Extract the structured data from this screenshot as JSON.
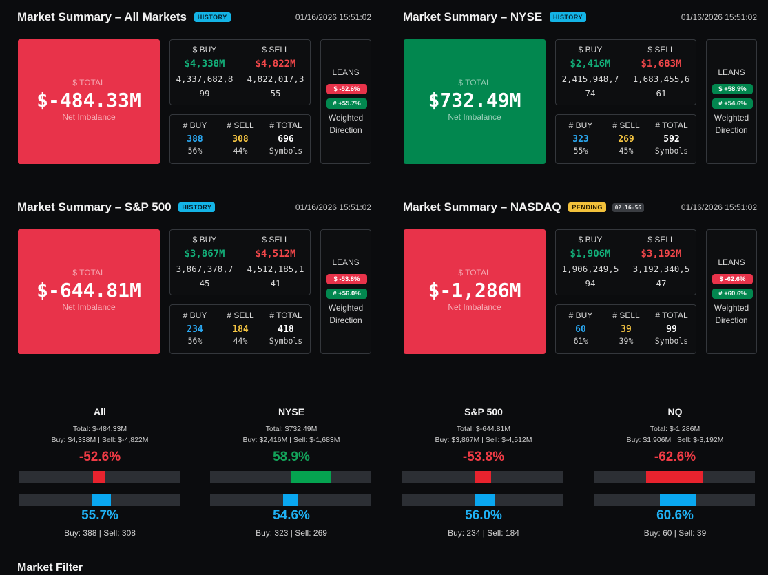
{
  "panels": [
    {
      "title": "Market Summary – All Markets",
      "badge": "HISTORY",
      "timestamp": "01/16/2026 15:51:02",
      "total_label": "$ TOTAL",
      "total_value": "$-484.33M",
      "total_sub": "Net Imbalance",
      "total_color": "#e8334a",
      "buy_head": "$ BUY",
      "sell_head": "$ SELL",
      "buy_short": "$4,338M",
      "sell_short": "$4,822M",
      "buy_raw": "4,337,682,899",
      "sell_raw": "4,822,017,355",
      "nbuy_head": "# BUY",
      "nsell_head": "# SELL",
      "ntotal_head": "# TOTAL",
      "nbuy": "388",
      "nsell": "308",
      "ntotal": "696",
      "nbuy_pct": "56%",
      "nsell_pct": "44%",
      "ntotal_sub": "Symbols",
      "leans_title": "LEANS",
      "lean1": "$ -52.6%",
      "lean1_color": "red",
      "lean2": "# +55.7%",
      "lean2_color": "green",
      "leans_foot1": "Weighted",
      "leans_foot2": "Direction"
    },
    {
      "title": "Market Summary – NYSE",
      "badge": "HISTORY",
      "timestamp": "01/16/2026 15:51:02",
      "total_label": "$ TOTAL",
      "total_value": "$732.49M",
      "total_sub": "Net Imbalance",
      "total_color": "#02874f",
      "buy_head": "$ BUY",
      "sell_head": "$ SELL",
      "buy_short": "$2,416M",
      "sell_short": "$1,683M",
      "buy_raw": "2,415,948,774",
      "sell_raw": "1,683,455,661",
      "nbuy_head": "# BUY",
      "nsell_head": "# SELL",
      "ntotal_head": "# TOTAL",
      "nbuy": "323",
      "nsell": "269",
      "ntotal": "592",
      "nbuy_pct": "55%",
      "nsell_pct": "45%",
      "ntotal_sub": "Symbols",
      "leans_title": "LEANS",
      "lean1": "$ +58.9%",
      "lean1_color": "green",
      "lean2": "# +54.6%",
      "lean2_color": "green",
      "leans_foot1": "Weighted",
      "leans_foot2": "Direction"
    },
    {
      "title": "Market Summary – S&P 500",
      "badge": "HISTORY",
      "timestamp": "01/16/2026 15:51:02",
      "total_label": "$ TOTAL",
      "total_value": "$-644.81M",
      "total_sub": "Net Imbalance",
      "total_color": "#e8334a",
      "buy_head": "$ BUY",
      "sell_head": "$ SELL",
      "buy_short": "$3,867M",
      "sell_short": "$4,512M",
      "buy_raw": "3,867,378,745",
      "sell_raw": "4,512,185,141",
      "nbuy_head": "# BUY",
      "nsell_head": "# SELL",
      "ntotal_head": "# TOTAL",
      "nbuy": "234",
      "nsell": "184",
      "ntotal": "418",
      "nbuy_pct": "56%",
      "nsell_pct": "44%",
      "ntotal_sub": "Symbols",
      "leans_title": "LEANS",
      "lean1": "$ -53.8%",
      "lean1_color": "red",
      "lean2": "# +56.0%",
      "lean2_color": "green",
      "leans_foot1": "Weighted",
      "leans_foot2": "Direction"
    },
    {
      "title": "Market Summary – NASDAQ",
      "badge": "PENDING",
      "timer": "02:16:56",
      "timestamp": "01/16/2026 15:51:02",
      "total_label": "$ TOTAL",
      "total_value": "$-1,286M",
      "total_sub": "Net Imbalance",
      "total_color": "#e8334a",
      "buy_head": "$ BUY",
      "sell_head": "$ SELL",
      "buy_short": "$1,906M",
      "sell_short": "$3,192M",
      "buy_raw": "1,906,249,594",
      "sell_raw": "3,192,340,547",
      "nbuy_head": "# BUY",
      "nsell_head": "# SELL",
      "ntotal_head": "# TOTAL",
      "nbuy": "60",
      "nsell": "39",
      "ntotal": "99",
      "nbuy_pct": "61%",
      "nsell_pct": "39%",
      "ntotal_sub": "Symbols",
      "leans_title": "LEANS",
      "lean1": "$ -62.6%",
      "lean1_color": "red",
      "lean2": "# +60.6%",
      "lean2_color": "green",
      "leans_foot1": "Weighted",
      "leans_foot2": "Direction"
    }
  ],
  "gauges": [
    {
      "title": "All",
      "total_line": "Total: $-484.33M",
      "buysell_line": "Buy: $4,338M | Sell: $-4,822M",
      "dollar_pct": "-52.6%",
      "dollar_lean": -0.526,
      "dollar_color": "#e8232e",
      "count_pct": "55.7%",
      "count_lean": 0.557,
      "count_color": "#0aa7f0",
      "foot": "Buy: 388 | Sell: 308"
    },
    {
      "title": "NYSE",
      "total_line": "Total: $732.49M",
      "buysell_line": "Buy: $2,416M | Sell: $-1,683M",
      "dollar_pct": "58.9%",
      "dollar_lean": 0.589,
      "dollar_color": "#05a350",
      "count_pct": "54.6%",
      "count_lean": 0.546,
      "count_color": "#0aa7f0",
      "foot": "Buy: 323 | Sell: 269"
    },
    {
      "title": "S&P 500",
      "total_line": "Total: $-644.81M",
      "buysell_line": "Buy: $3,867M | Sell: $-4,512M",
      "dollar_pct": "-53.8%",
      "dollar_lean": -0.538,
      "dollar_color": "#e8232e",
      "count_pct": "56.0%",
      "count_lean": 0.56,
      "count_color": "#0aa7f0",
      "foot": "Buy: 234 | Sell: 184"
    },
    {
      "title": "NQ",
      "total_line": "Total: $-1,286M",
      "buysell_line": "Buy: $1,906M | Sell: $-3,192M",
      "dollar_pct": "-62.6%",
      "dollar_lean": -0.626,
      "dollar_color": "#e8232e",
      "count_pct": "60.6%",
      "count_lean": 0.606,
      "count_color": "#0aa7f0",
      "foot": "Buy: 60 | Sell: 39"
    }
  ],
  "filter_title": "Market Filter"
}
